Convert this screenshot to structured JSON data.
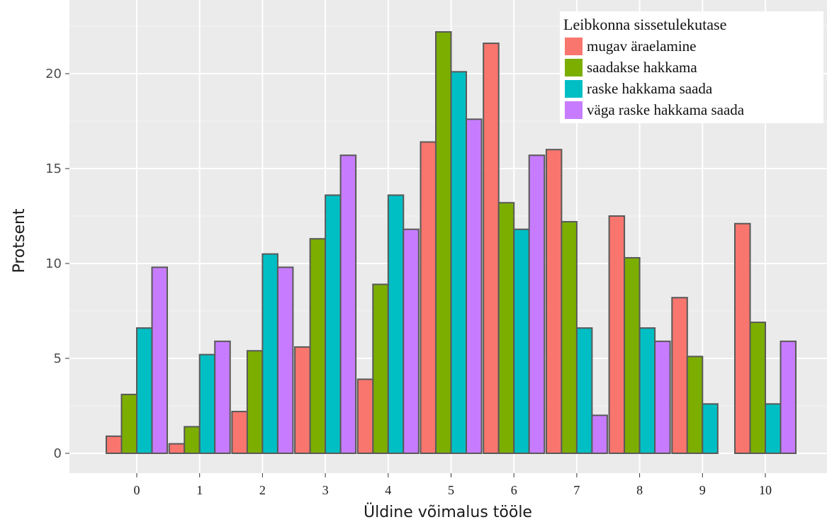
{
  "chart_data": {
    "type": "bar",
    "xlabel": "Üldine  võimalus  tööle",
    "ylabel": "Protsent",
    "categories": [
      "0",
      "1",
      "2",
      "3",
      "4",
      "5",
      "6",
      "7",
      "8",
      "9",
      "10"
    ],
    "yticks": [
      "0",
      "5",
      "10",
      "15",
      "20"
    ],
    "ylim": [
      0,
      23.4
    ],
    "grid": true,
    "legend": {
      "title": "Leibkonna sissetulekutase",
      "position": "top-right"
    },
    "series": [
      {
        "name": "mugav äraelamine",
        "color": "#F8766D",
        "values": [
          0.9,
          0.5,
          2.2,
          5.6,
          3.9,
          16.4,
          21.6,
          16.0,
          12.5,
          8.2,
          12.1
        ]
      },
      {
        "name": "saadakse hakkama",
        "color": "#7CAE00",
        "values": [
          3.1,
          1.4,
          5.4,
          11.3,
          8.9,
          22.2,
          13.2,
          12.2,
          10.3,
          5.1,
          6.9
        ]
      },
      {
        "name": "raske hakkama saada",
        "color": "#00BFC4",
        "values": [
          6.6,
          5.2,
          10.5,
          13.6,
          13.6,
          20.1,
          11.8,
          6.6,
          6.6,
          2.6,
          2.6
        ]
      },
      {
        "name": "väga raske hakkama saada",
        "color": "#C77CFF",
        "values": [
          9.8,
          5.9,
          9.8,
          15.7,
          11.8,
          17.6,
          15.7,
          2.0,
          5.9,
          0,
          5.9
        ]
      }
    ]
  }
}
